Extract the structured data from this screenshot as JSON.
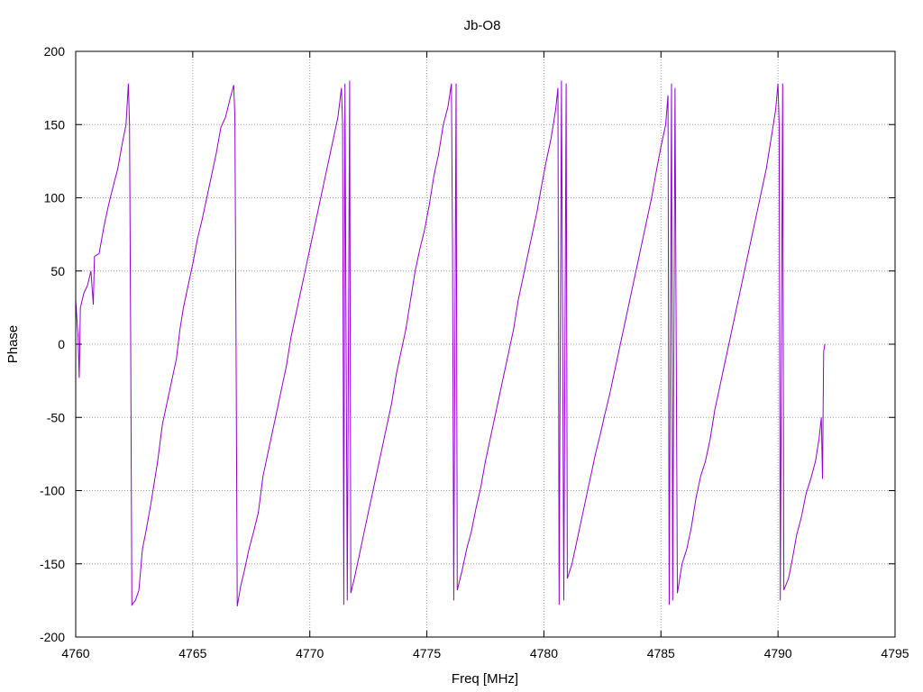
{
  "chart_data": {
    "type": "line",
    "title": "Jb-O8",
    "xlabel": "Freq [MHz]",
    "ylabel": "Phase",
    "xlim": [
      4760,
      4795
    ],
    "ylim": [
      -200,
      200
    ],
    "x_ticks": [
      "4760",
      "4765",
      "4770",
      "4775",
      "4780",
      "4785",
      "4790",
      "4795"
    ],
    "y_ticks": [
      "200",
      "150",
      "100",
      "50",
      "0",
      "-50",
      "-100",
      "-150",
      "-200"
    ],
    "grid": true,
    "legend": "none",
    "colors": {
      "series": "#9400d3",
      "grid": "#a0a0a0",
      "frame": "#000000"
    },
    "series": [
      {
        "points": [
          [
            4760.0,
            30
          ],
          [
            4760.1,
            5
          ],
          [
            4760.15,
            -23
          ],
          [
            4760.2,
            25
          ],
          [
            4760.35,
            35
          ],
          [
            4760.5,
            40
          ],
          [
            4760.65,
            50
          ],
          [
            4760.75,
            27
          ],
          [
            4760.8,
            60
          ],
          [
            4761.0,
            62
          ],
          [
            4761.2,
            80
          ],
          [
            4761.4,
            95
          ],
          [
            4761.6,
            108
          ],
          [
            4761.8,
            120
          ],
          [
            4762.0,
            138
          ],
          [
            4762.15,
            150
          ],
          [
            4762.25,
            178
          ],
          [
            4762.3,
            150
          ],
          [
            4762.35,
            0
          ],
          [
            4762.4,
            -178
          ],
          [
            4762.55,
            -175
          ],
          [
            4762.7,
            -168
          ],
          [
            4762.85,
            -140
          ],
          [
            4763.0,
            -128
          ],
          [
            4763.2,
            -110
          ],
          [
            4763.35,
            -95
          ],
          [
            4763.5,
            -80
          ],
          [
            4763.7,
            -55
          ],
          [
            4763.9,
            -40
          ],
          [
            4764.1,
            -25
          ],
          [
            4764.3,
            -10
          ],
          [
            4764.45,
            10
          ],
          [
            4764.6,
            25
          ],
          [
            4764.8,
            40
          ],
          [
            4765.0,
            55
          ],
          [
            4765.2,
            72
          ],
          [
            4765.4,
            85
          ],
          [
            4765.6,
            100
          ],
          [
            4765.8,
            115
          ],
          [
            4766.0,
            130
          ],
          [
            4766.2,
            148
          ],
          [
            4766.4,
            155
          ],
          [
            4766.6,
            168
          ],
          [
            4766.75,
            177
          ],
          [
            4766.8,
            155
          ],
          [
            4766.85,
            -2
          ],
          [
            4766.9,
            -179
          ],
          [
            4767.05,
            -165
          ],
          [
            4767.2,
            -155
          ],
          [
            4767.4,
            -140
          ],
          [
            4767.6,
            -128
          ],
          [
            4767.8,
            -115
          ],
          [
            4768.0,
            -90
          ],
          [
            4768.2,
            -75
          ],
          [
            4768.4,
            -60
          ],
          [
            4768.6,
            -45
          ],
          [
            4768.8,
            -30
          ],
          [
            4769.0,
            -15
          ],
          [
            4769.2,
            5
          ],
          [
            4769.4,
            20
          ],
          [
            4769.6,
            35
          ],
          [
            4769.8,
            50
          ],
          [
            4770.0,
            65
          ],
          [
            4770.2,
            80
          ],
          [
            4770.4,
            95
          ],
          [
            4770.6,
            110
          ],
          [
            4770.8,
            125
          ],
          [
            4771.0,
            140
          ],
          [
            4771.2,
            155
          ],
          [
            4771.35,
            175
          ],
          [
            4771.4,
            150
          ],
          [
            4771.45,
            -178
          ],
          [
            4771.5,
            178
          ],
          [
            4771.55,
            0
          ],
          [
            4771.6,
            -175
          ],
          [
            4771.7,
            180
          ],
          [
            4771.75,
            -170
          ],
          [
            4771.9,
            -160
          ],
          [
            4772.1,
            -145
          ],
          [
            4772.3,
            -130
          ],
          [
            4772.5,
            -115
          ],
          [
            4772.7,
            -100
          ],
          [
            4772.9,
            -85
          ],
          [
            4773.1,
            -70
          ],
          [
            4773.3,
            -55
          ],
          [
            4773.5,
            -40
          ],
          [
            4773.7,
            -20
          ],
          [
            4773.9,
            -5
          ],
          [
            4774.1,
            10
          ],
          [
            4774.3,
            30
          ],
          [
            4774.5,
            50
          ],
          [
            4774.7,
            65
          ],
          [
            4774.9,
            78
          ],
          [
            4775.1,
            95
          ],
          [
            4775.3,
            115
          ],
          [
            4775.5,
            130
          ],
          [
            4775.7,
            150
          ],
          [
            4775.9,
            162
          ],
          [
            4776.05,
            178
          ],
          [
            4776.1,
            60
          ],
          [
            4776.15,
            -175
          ],
          [
            4776.25,
            178
          ],
          [
            4776.3,
            -168
          ],
          [
            4776.5,
            -155
          ],
          [
            4776.7,
            -140
          ],
          [
            4776.9,
            -128
          ],
          [
            4777.1,
            -112
          ],
          [
            4777.3,
            -98
          ],
          [
            4777.5,
            -80
          ],
          [
            4777.7,
            -65
          ],
          [
            4777.9,
            -50
          ],
          [
            4778.1,
            -35
          ],
          [
            4778.3,
            -20
          ],
          [
            4778.5,
            -5
          ],
          [
            4778.7,
            10
          ],
          [
            4778.9,
            30
          ],
          [
            4779.1,
            45
          ],
          [
            4779.3,
            60
          ],
          [
            4779.5,
            75
          ],
          [
            4779.7,
            90
          ],
          [
            4779.9,
            108
          ],
          [
            4780.1,
            125
          ],
          [
            4780.3,
            140
          ],
          [
            4780.5,
            160
          ],
          [
            4780.6,
            175
          ],
          [
            4780.65,
            -178
          ],
          [
            4780.75,
            180
          ],
          [
            4780.8,
            0
          ],
          [
            4780.85,
            -175
          ],
          [
            4780.95,
            178
          ],
          [
            4781.0,
            -160
          ],
          [
            4781.2,
            -150
          ],
          [
            4781.4,
            -135
          ],
          [
            4781.6,
            -120
          ],
          [
            4781.8,
            -105
          ],
          [
            4782.0,
            -90
          ],
          [
            4782.2,
            -75
          ],
          [
            4782.4,
            -62
          ],
          [
            4782.6,
            -48
          ],
          [
            4782.8,
            -35
          ],
          [
            4783.0,
            -20
          ],
          [
            4783.2,
            -5
          ],
          [
            4783.4,
            10
          ],
          [
            4783.6,
            25
          ],
          [
            4783.8,
            40
          ],
          [
            4784.0,
            55
          ],
          [
            4784.2,
            70
          ],
          [
            4784.4,
            85
          ],
          [
            4784.6,
            100
          ],
          [
            4784.8,
            118
          ],
          [
            4785.0,
            135
          ],
          [
            4785.2,
            150
          ],
          [
            4785.3,
            170
          ],
          [
            4785.35,
            -178
          ],
          [
            4785.45,
            178
          ],
          [
            4785.5,
            -175
          ],
          [
            4785.6,
            175
          ],
          [
            4785.65,
            0
          ],
          [
            4785.7,
            -170
          ],
          [
            4785.9,
            -150
          ],
          [
            4786.1,
            -140
          ],
          [
            4786.3,
            -125
          ],
          [
            4786.5,
            -105
          ],
          [
            4786.7,
            -90
          ],
          [
            4786.9,
            -80
          ],
          [
            4787.1,
            -65
          ],
          [
            4787.3,
            -45
          ],
          [
            4787.5,
            -30
          ],
          [
            4787.7,
            -15
          ],
          [
            4787.9,
            0
          ],
          [
            4788.1,
            15
          ],
          [
            4788.3,
            30
          ],
          [
            4788.5,
            45
          ],
          [
            4788.7,
            60
          ],
          [
            4788.9,
            75
          ],
          [
            4789.1,
            90
          ],
          [
            4789.3,
            105
          ],
          [
            4789.5,
            120
          ],
          [
            4789.7,
            140
          ],
          [
            4789.9,
            160
          ],
          [
            4790.0,
            178
          ],
          [
            4790.05,
            150
          ],
          [
            4790.1,
            -175
          ],
          [
            4790.2,
            178
          ],
          [
            4790.25,
            -168
          ],
          [
            4790.45,
            -160
          ],
          [
            4790.6,
            -148
          ],
          [
            4790.8,
            -130
          ],
          [
            4791.0,
            -118
          ],
          [
            4791.2,
            -102
          ],
          [
            4791.4,
            -92
          ],
          [
            4791.6,
            -80
          ],
          [
            4791.75,
            -65
          ],
          [
            4791.85,
            -50
          ],
          [
            4791.9,
            -92
          ],
          [
            4791.95,
            -5
          ],
          [
            4792.0,
            0
          ]
        ]
      }
    ]
  }
}
